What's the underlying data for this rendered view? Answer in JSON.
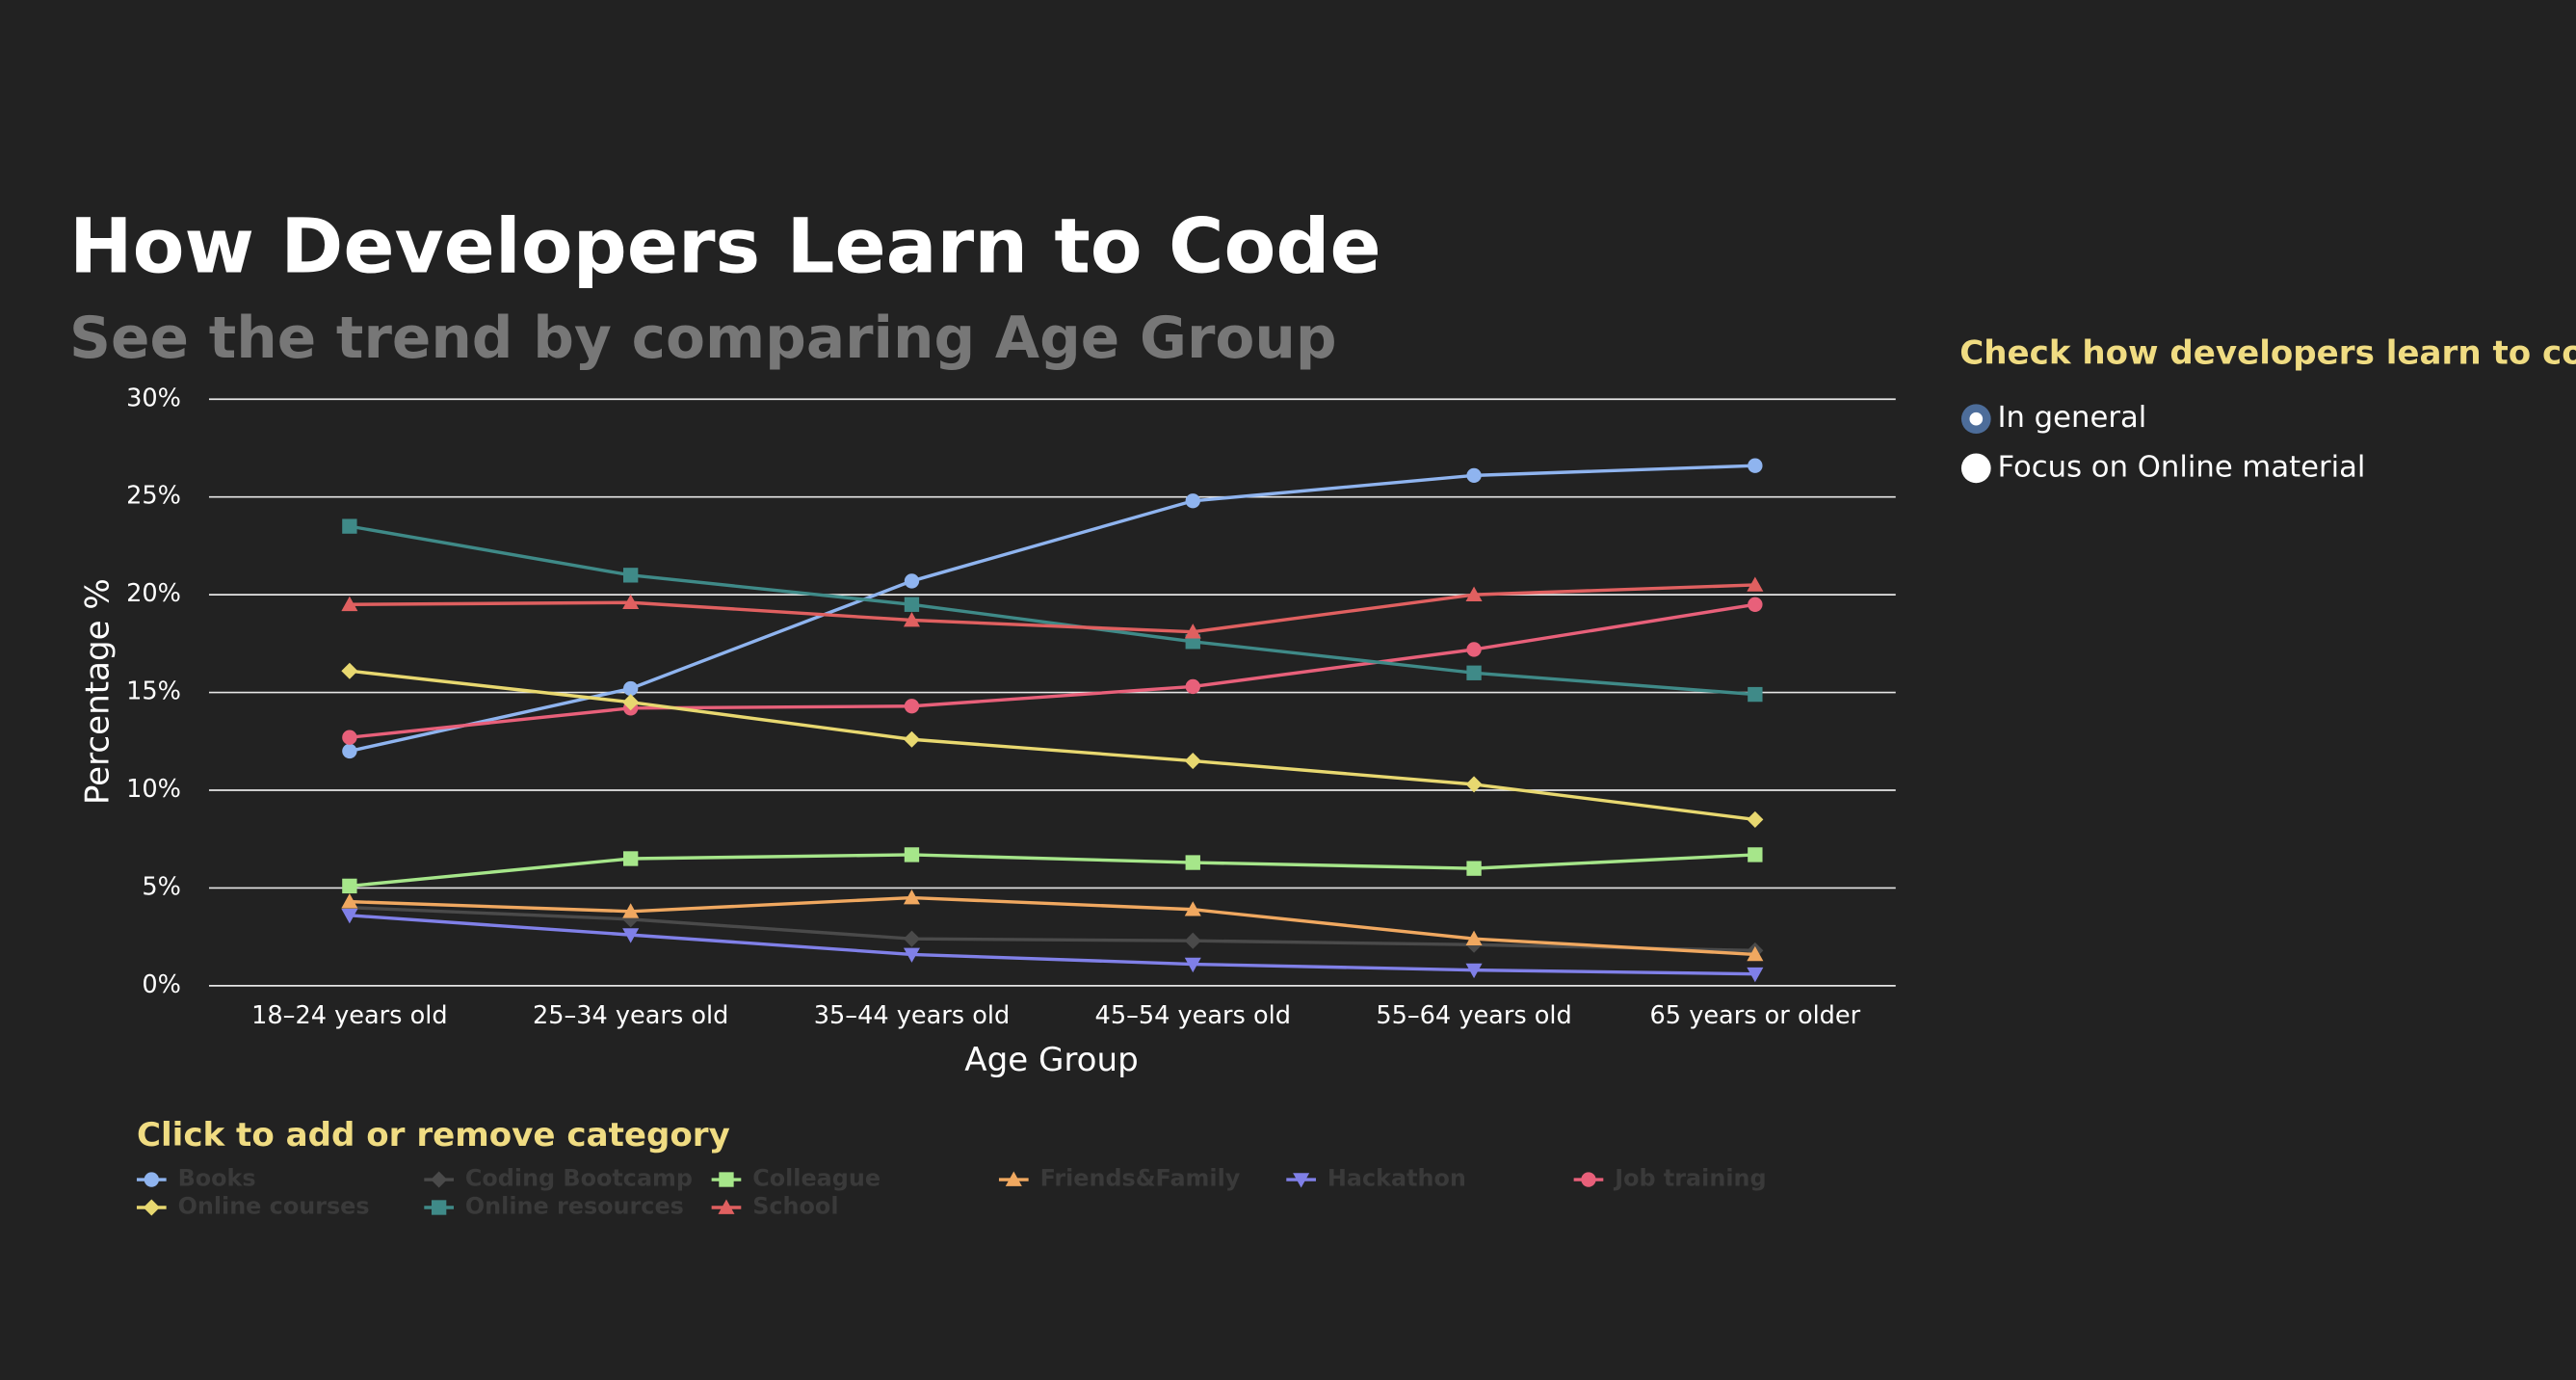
{
  "chart_data": {
    "type": "line",
    "title": "How Developers Learn to Code",
    "subtitle": "See the trend by comparing Age Group",
    "x_label": "Age Group",
    "y_label": "Percentage %",
    "categories": [
      "18–24 years old",
      "25–34 years old",
      "35–44 years old",
      "45–54 years old",
      "55–64 years old",
      "65 years or older"
    ],
    "ylim": [
      0,
      30
    ],
    "yticks": [
      {
        "value": 0,
        "label": "0%"
      },
      {
        "value": 5,
        "label": "5%"
      },
      {
        "value": 10,
        "label": "10%"
      },
      {
        "value": 15,
        "label": "15%"
      },
      {
        "value": 20,
        "label": "20%"
      },
      {
        "value": 25,
        "label": "25%"
      },
      {
        "value": 30,
        "label": "30%"
      }
    ],
    "grid": true,
    "legend_title": "Click to add or remove category",
    "series": [
      {
        "name": "Books",
        "color": "#8fb4ef",
        "marker": "circle",
        "values": [
          12.0,
          15.2,
          20.7,
          24.8,
          26.1,
          26.6
        ]
      },
      {
        "name": "Coding Bootcamp",
        "color": "#4a4a4a",
        "marker": "diamond",
        "values": [
          4.0,
          3.4,
          2.4,
          2.3,
          2.1,
          1.8
        ]
      },
      {
        "name": "Colleague",
        "color": "#a6e68a",
        "marker": "square",
        "values": [
          5.1,
          6.5,
          6.7,
          6.3,
          6.0,
          6.7
        ]
      },
      {
        "name": "Friends&Family",
        "color": "#f0a860",
        "marker": "triangle",
        "values": [
          4.3,
          3.8,
          4.5,
          3.9,
          2.4,
          1.6
        ]
      },
      {
        "name": "Hackathon",
        "color": "#8080e8",
        "marker": "triangle-down",
        "values": [
          3.6,
          2.6,
          1.6,
          1.1,
          0.8,
          0.6
        ]
      },
      {
        "name": "Job training",
        "color": "#e8607a",
        "marker": "circle",
        "values": [
          12.7,
          14.2,
          14.3,
          15.3,
          17.2,
          19.5
        ]
      },
      {
        "name": "Online courses",
        "color": "#e8d870",
        "marker": "diamond",
        "values": [
          16.1,
          14.5,
          12.6,
          11.5,
          10.3,
          8.5
        ]
      },
      {
        "name": "Online resources",
        "color": "#3f8a88",
        "marker": "square",
        "values": [
          23.5,
          21.0,
          19.5,
          17.6,
          16.0,
          14.9
        ]
      },
      {
        "name": "School",
        "color": "#e06060",
        "marker": "triangle",
        "values": [
          19.5,
          19.6,
          18.7,
          18.1,
          20.0,
          20.5
        ]
      }
    ]
  },
  "controls": {
    "title": "Check how developers learn to code",
    "options": [
      "In general",
      "Focus on Online material"
    ],
    "selected": 0
  }
}
